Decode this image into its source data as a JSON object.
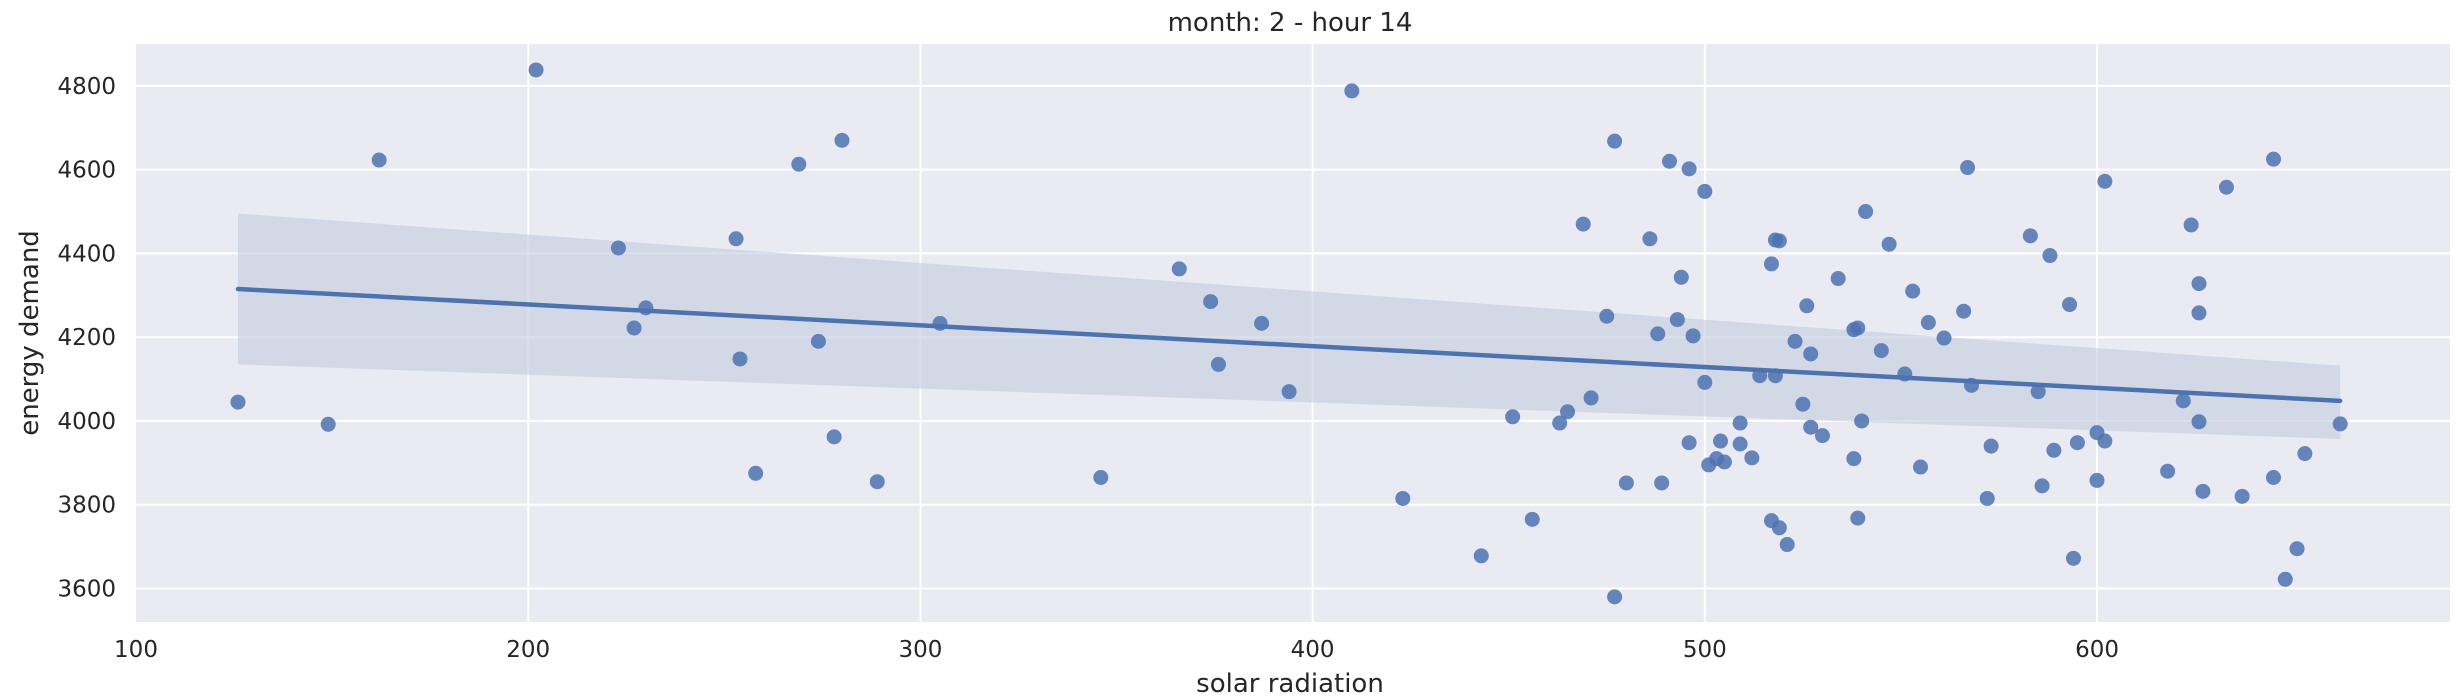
{
  "chart_data": {
    "type": "scatter",
    "title": "month: 2 - hour 14",
    "xlabel": "solar radiation",
    "ylabel": "energy demand",
    "xlim": [
      100,
      690
    ],
    "ylim": [
      3520,
      4900
    ],
    "xticks": [
      100,
      200,
      300,
      400,
      500,
      600
    ],
    "yticks": [
      3600,
      3800,
      4000,
      4200,
      4400,
      4600,
      4800
    ],
    "grid": true,
    "colors": {
      "background": "#eaeaf2",
      "grid": "#ffffff",
      "points": "#4c72b0",
      "line": "#4c72b0",
      "band": "#c3cbe0"
    },
    "regression": {
      "x": [
        126,
        662
      ],
      "y": [
        4315,
        4048
      ],
      "band_upper": [
        4495,
        4132
      ],
      "band_lower": [
        4135,
        3957
      ]
    },
    "points": [
      {
        "x": 126,
        "y": 4045
      },
      {
        "x": 149,
        "y": 3992
      },
      {
        "x": 162,
        "y": 4623
      },
      {
        "x": 202,
        "y": 4838
      },
      {
        "x": 223,
        "y": 4413
      },
      {
        "x": 227,
        "y": 4222
      },
      {
        "x": 230,
        "y": 4270
      },
      {
        "x": 253,
        "y": 4435
      },
      {
        "x": 254,
        "y": 4148
      },
      {
        "x": 258,
        "y": 3875
      },
      {
        "x": 269,
        "y": 4613
      },
      {
        "x": 274,
        "y": 4190
      },
      {
        "x": 278,
        "y": 3962
      },
      {
        "x": 280,
        "y": 4670
      },
      {
        "x": 289,
        "y": 3855
      },
      {
        "x": 305,
        "y": 4233
      },
      {
        "x": 346,
        "y": 3865
      },
      {
        "x": 366,
        "y": 4363
      },
      {
        "x": 374,
        "y": 4285
      },
      {
        "x": 376,
        "y": 4135
      },
      {
        "x": 387,
        "y": 4233
      },
      {
        "x": 394,
        "y": 4070
      },
      {
        "x": 410,
        "y": 4788
      },
      {
        "x": 423,
        "y": 3815
      },
      {
        "x": 443,
        "y": 3678
      },
      {
        "x": 451,
        "y": 4010
      },
      {
        "x": 456,
        "y": 3765
      },
      {
        "x": 463,
        "y": 3995
      },
      {
        "x": 465,
        "y": 4022
      },
      {
        "x": 469,
        "y": 4470
      },
      {
        "x": 471,
        "y": 4055
      },
      {
        "x": 475,
        "y": 4250
      },
      {
        "x": 477,
        "y": 4668
      },
      {
        "x": 477,
        "y": 3580
      },
      {
        "x": 480,
        "y": 3852
      },
      {
        "x": 486,
        "y": 4435
      },
      {
        "x": 488,
        "y": 4208
      },
      {
        "x": 489,
        "y": 3852
      },
      {
        "x": 491,
        "y": 4620
      },
      {
        "x": 493,
        "y": 4242
      },
      {
        "x": 494,
        "y": 4343
      },
      {
        "x": 496,
        "y": 4602
      },
      {
        "x": 496,
        "y": 3948
      },
      {
        "x": 497,
        "y": 4203
      },
      {
        "x": 500,
        "y": 4548
      },
      {
        "x": 500,
        "y": 4092
      },
      {
        "x": 501,
        "y": 3895
      },
      {
        "x": 503,
        "y": 3910
      },
      {
        "x": 504,
        "y": 3952
      },
      {
        "x": 505,
        "y": 3902
      },
      {
        "x": 509,
        "y": 3995
      },
      {
        "x": 509,
        "y": 3945
      },
      {
        "x": 512,
        "y": 3912
      },
      {
        "x": 514,
        "y": 4108
      },
      {
        "x": 517,
        "y": 4375
      },
      {
        "x": 517,
        "y": 3762
      },
      {
        "x": 518,
        "y": 4432
      },
      {
        "x": 518,
        "y": 4108
      },
      {
        "x": 519,
        "y": 4430
      },
      {
        "x": 519,
        "y": 3745
      },
      {
        "x": 521,
        "y": 3705
      },
      {
        "x": 523,
        "y": 4190
      },
      {
        "x": 525,
        "y": 4040
      },
      {
        "x": 526,
        "y": 4275
      },
      {
        "x": 527,
        "y": 4160
      },
      {
        "x": 527,
        "y": 3985
      },
      {
        "x": 530,
        "y": 3965
      },
      {
        "x": 534,
        "y": 4340
      },
      {
        "x": 538,
        "y": 4218
      },
      {
        "x": 538,
        "y": 3910
      },
      {
        "x": 539,
        "y": 4222
      },
      {
        "x": 539,
        "y": 3768
      },
      {
        "x": 540,
        "y": 4000
      },
      {
        "x": 541,
        "y": 4500
      },
      {
        "x": 545,
        "y": 4168
      },
      {
        "x": 547,
        "y": 4422
      },
      {
        "x": 551,
        "y": 4112
      },
      {
        "x": 553,
        "y": 4310
      },
      {
        "x": 555,
        "y": 3890
      },
      {
        "x": 557,
        "y": 4235
      },
      {
        "x": 561,
        "y": 4198
      },
      {
        "x": 566,
        "y": 4262
      },
      {
        "x": 567,
        "y": 4605
      },
      {
        "x": 568,
        "y": 4085
      },
      {
        "x": 572,
        "y": 3815
      },
      {
        "x": 573,
        "y": 3940
      },
      {
        "x": 583,
        "y": 4442
      },
      {
        "x": 585,
        "y": 4070
      },
      {
        "x": 586,
        "y": 3845
      },
      {
        "x": 588,
        "y": 4395
      },
      {
        "x": 589,
        "y": 3930
      },
      {
        "x": 593,
        "y": 4278
      },
      {
        "x": 594,
        "y": 3672
      },
      {
        "x": 595,
        "y": 3948
      },
      {
        "x": 600,
        "y": 3972
      },
      {
        "x": 600,
        "y": 3858
      },
      {
        "x": 602,
        "y": 4572
      },
      {
        "x": 602,
        "y": 3952
      },
      {
        "x": 618,
        "y": 3880
      },
      {
        "x": 622,
        "y": 4048
      },
      {
        "x": 624,
        "y": 4468
      },
      {
        "x": 626,
        "y": 4328
      },
      {
        "x": 626,
        "y": 4258
      },
      {
        "x": 626,
        "y": 3998
      },
      {
        "x": 627,
        "y": 3832
      },
      {
        "x": 633,
        "y": 4558
      },
      {
        "x": 637,
        "y": 3820
      },
      {
        "x": 645,
        "y": 4625
      },
      {
        "x": 645,
        "y": 3865
      },
      {
        "x": 648,
        "y": 3622
      },
      {
        "x": 651,
        "y": 3695
      },
      {
        "x": 653,
        "y": 3922
      },
      {
        "x": 662,
        "y": 3993
      }
    ]
  }
}
